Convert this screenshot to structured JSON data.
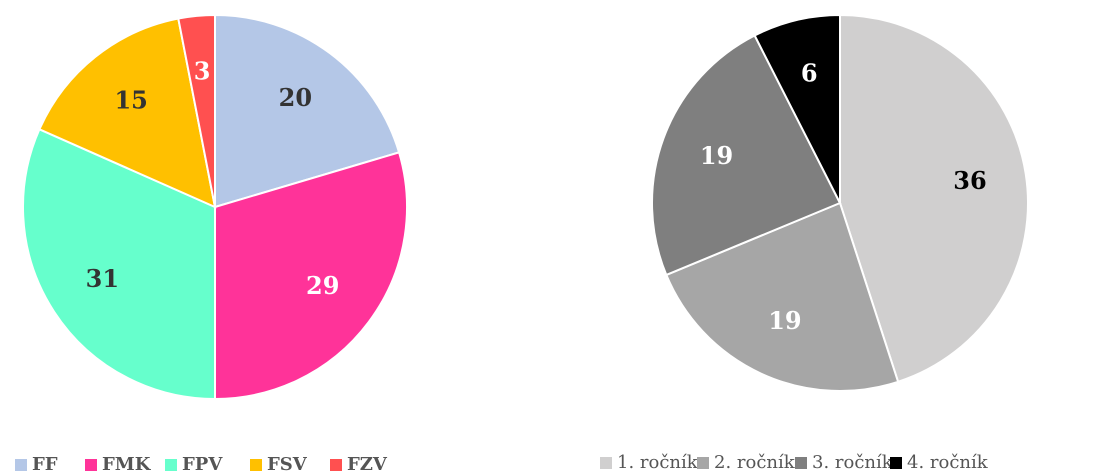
{
  "chart_data": [
    {
      "type": "pie",
      "categories": [
        "FF",
        "FMK",
        "FPV",
        "FSV",
        "FZV"
      ],
      "values": [
        20,
        29,
        31,
        15,
        3
      ],
      "colors": [
        "#b4c7e7",
        "#ff3399",
        "#66ffcc",
        "#ffc000",
        "#ff5050"
      ],
      "label_colors": [
        "#333333",
        "#ffffff",
        "#333333",
        "#333333",
        "#ffffff"
      ],
      "legend": "bottom"
    },
    {
      "type": "pie",
      "categories": [
        "1. ročník",
        "2. ročník",
        "3. ročník",
        "4. ročník"
      ],
      "values": [
        36,
        19,
        19,
        6
      ],
      "colors": [
        "#d0cfcf",
        "#a6a6a6",
        "#7f7f7f",
        "#000000"
      ],
      "label_colors": [
        "#000000",
        "#ffffff",
        "#ffffff",
        "#ffffff"
      ],
      "legend": "bottom"
    }
  ]
}
